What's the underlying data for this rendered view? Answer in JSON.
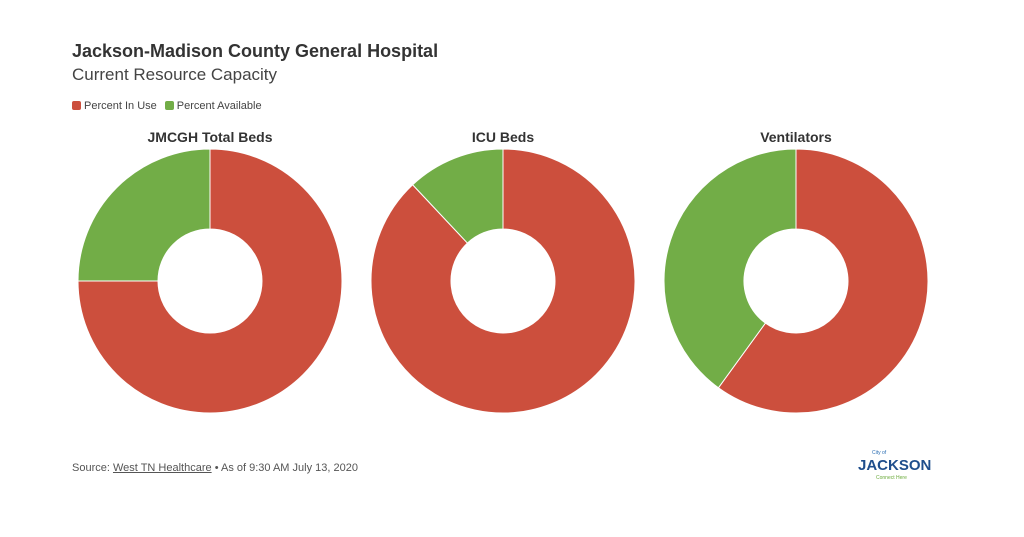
{
  "header": {
    "title": "Jackson-Madison County General Hospital",
    "subtitle": "Current Resource Capacity"
  },
  "chart_data": [
    {
      "type": "donut",
      "title": "JMCGH Total Beds",
      "categories": [
        "Percent In Use",
        "Percent Available"
      ],
      "values": [
        75,
        25
      ],
      "colors": [
        "#cc4f3d",
        "#72ad47"
      ]
    },
    {
      "type": "donut",
      "title": "ICU Beds",
      "categories": [
        "Percent In Use",
        "Percent Available"
      ],
      "values": [
        88,
        12
      ],
      "colors": [
        "#cc4f3d",
        "#72ad47"
      ]
    },
    {
      "type": "donut",
      "title": "Ventilators",
      "categories": [
        "Percent In Use",
        "Percent Available"
      ],
      "values": [
        60,
        40
      ],
      "colors": [
        "#cc4f3d",
        "#72ad47"
      ]
    }
  ],
  "footer": {
    "source_label": "Source:",
    "source_link": "West TN Healthcare",
    "as_of": "• As of 9:30 AM July 13, 2020"
  },
  "logo": {
    "city": "City of",
    "name": "JACKSON",
    "tagline": "Connect Here"
  }
}
